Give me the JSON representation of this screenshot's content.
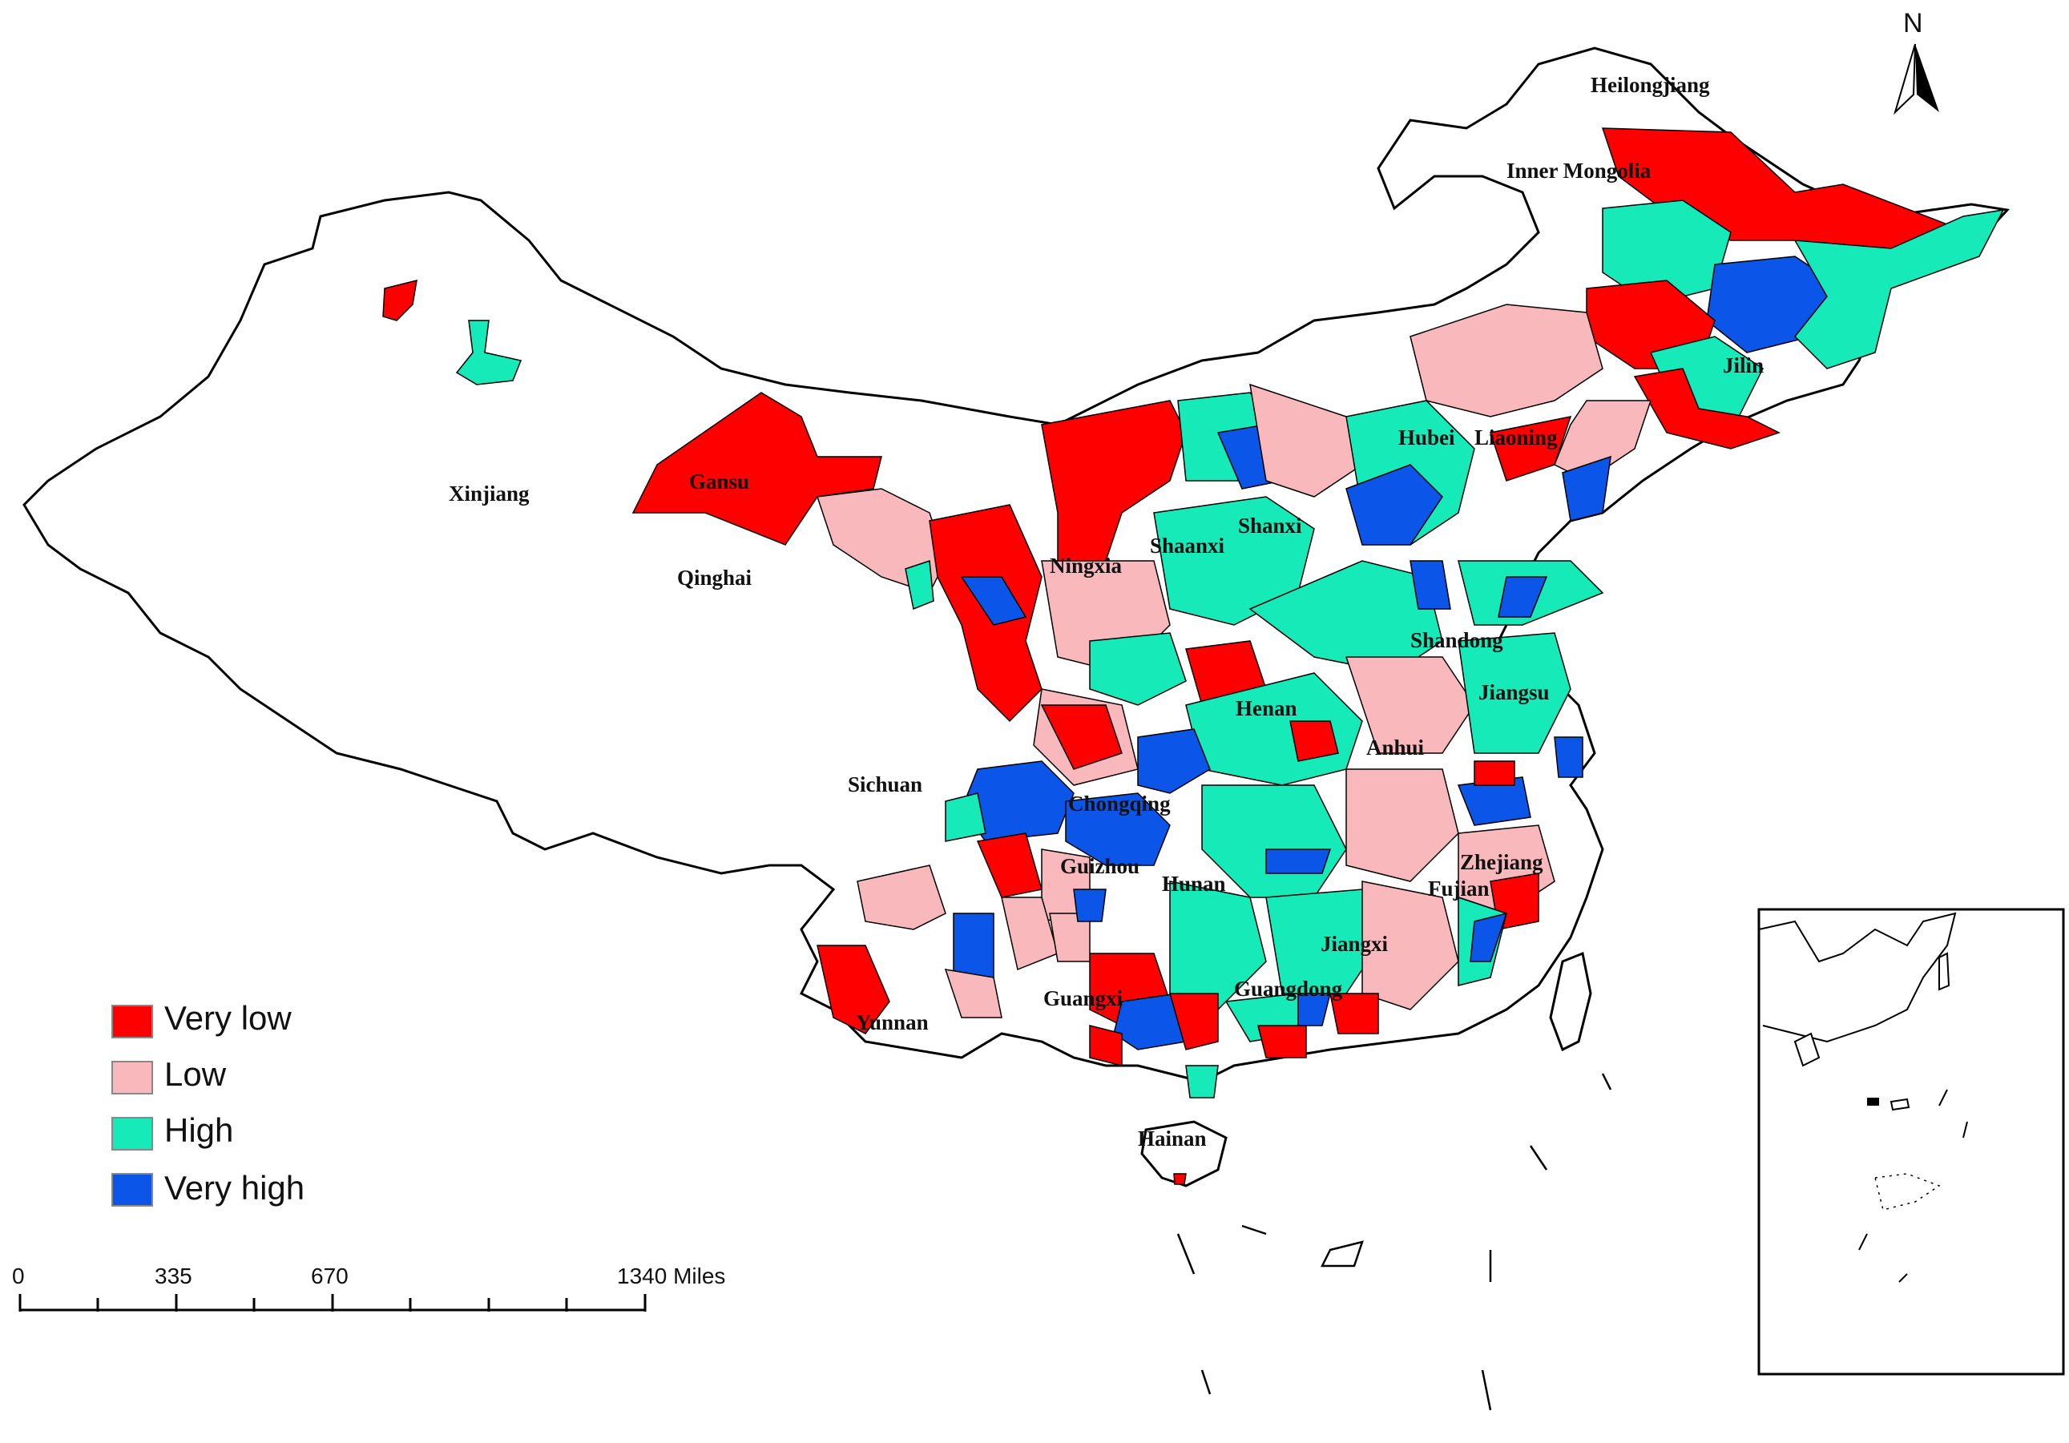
{
  "colors": {
    "very_low": "#ff0000",
    "low": "#f8b8bc",
    "high": "#15eab8",
    "very_high": "#0b55e8",
    "outline": "#000000"
  },
  "legend": {
    "items": [
      {
        "label": "Very low",
        "color": "#ff0000"
      },
      {
        "label": "Low",
        "color": "#f8b8bc"
      },
      {
        "label": "High",
        "color": "#15eab8"
      },
      {
        "label": "Very high",
        "color": "#0b55e8"
      }
    ]
  },
  "scale_bar": {
    "ticks": [
      "0",
      "335",
      "670",
      "1340 Miles"
    ]
  },
  "north_arrow": {
    "label": "N"
  },
  "province_labels": [
    {
      "name": "Heilongjiang"
    },
    {
      "name": "Inner Mongolia"
    },
    {
      "name": "Jilin"
    },
    {
      "name": "Liaoning"
    },
    {
      "name": "Hubei"
    },
    {
      "name": "Xinjiang"
    },
    {
      "name": "Gansu"
    },
    {
      "name": "Qinghai"
    },
    {
      "name": "Ningxia"
    },
    {
      "name": "Shaanxi"
    },
    {
      "name": "Shanxi"
    },
    {
      "name": "Shandong"
    },
    {
      "name": "Jiangsu"
    },
    {
      "name": "Henan"
    },
    {
      "name": "Anhui"
    },
    {
      "name": "Sichuan"
    },
    {
      "name": "Chongqing"
    },
    {
      "name": "Guizhou"
    },
    {
      "name": "Hunan"
    },
    {
      "name": "Zhejiang"
    },
    {
      "name": "Fujian"
    },
    {
      "name": "Jiangxi"
    },
    {
      "name": "Guangdong"
    },
    {
      "name": "Guangxi"
    },
    {
      "name": "Yunnan"
    },
    {
      "name": "Hainan"
    }
  ]
}
